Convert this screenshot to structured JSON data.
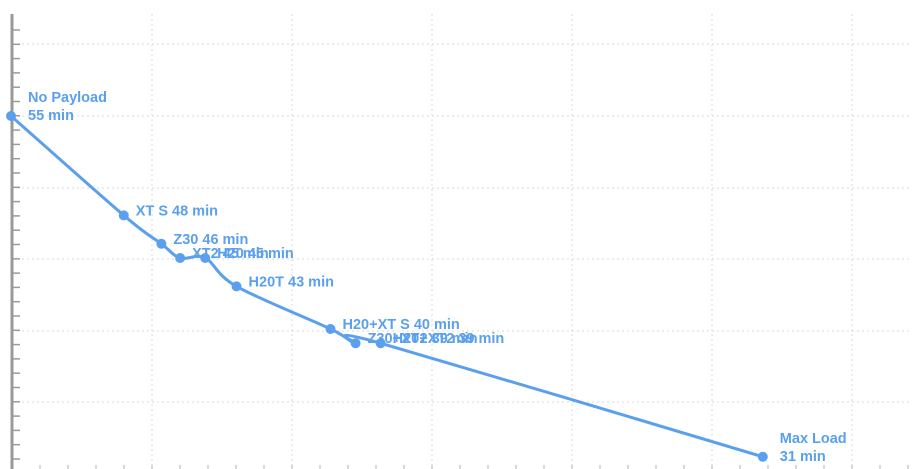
{
  "chart_data": {
    "type": "line",
    "title": "",
    "xlabel": "",
    "ylabel": "",
    "unit": "min",
    "color": "#5aa0ec",
    "grid": true,
    "points": [
      {
        "label": "No Payload",
        "value_text": "55 min",
        "x": 0,
        "y": 55
      },
      {
        "label": "XT S",
        "value_text": "48 min",
        "x": 0.9,
        "y": 48
      },
      {
        "label": "Z30",
        "value_text": "46 min",
        "x": 1.2,
        "y": 46
      },
      {
        "label": "XT2",
        "value_text": "45 min",
        "x": 1.35,
        "y": 45
      },
      {
        "label": "H20",
        "value_text": "45 min",
        "x": 1.55,
        "y": 45
      },
      {
        "label": "H20T",
        "value_text": "43 min",
        "x": 1.8,
        "y": 43
      },
      {
        "label": "H20+XT S",
        "value_text": "40 min",
        "x": 2.55,
        "y": 40
      },
      {
        "label": "Z30+XT2",
        "value_text": "39 min",
        "x": 2.75,
        "y": 39
      },
      {
        "label": "H20+XT2",
        "value_text": "39 min",
        "x": 2.95,
        "y": 39
      },
      {
        "label": "Max Load",
        "value_text": "31 min",
        "x": 6.0,
        "y": 31
      }
    ]
  }
}
